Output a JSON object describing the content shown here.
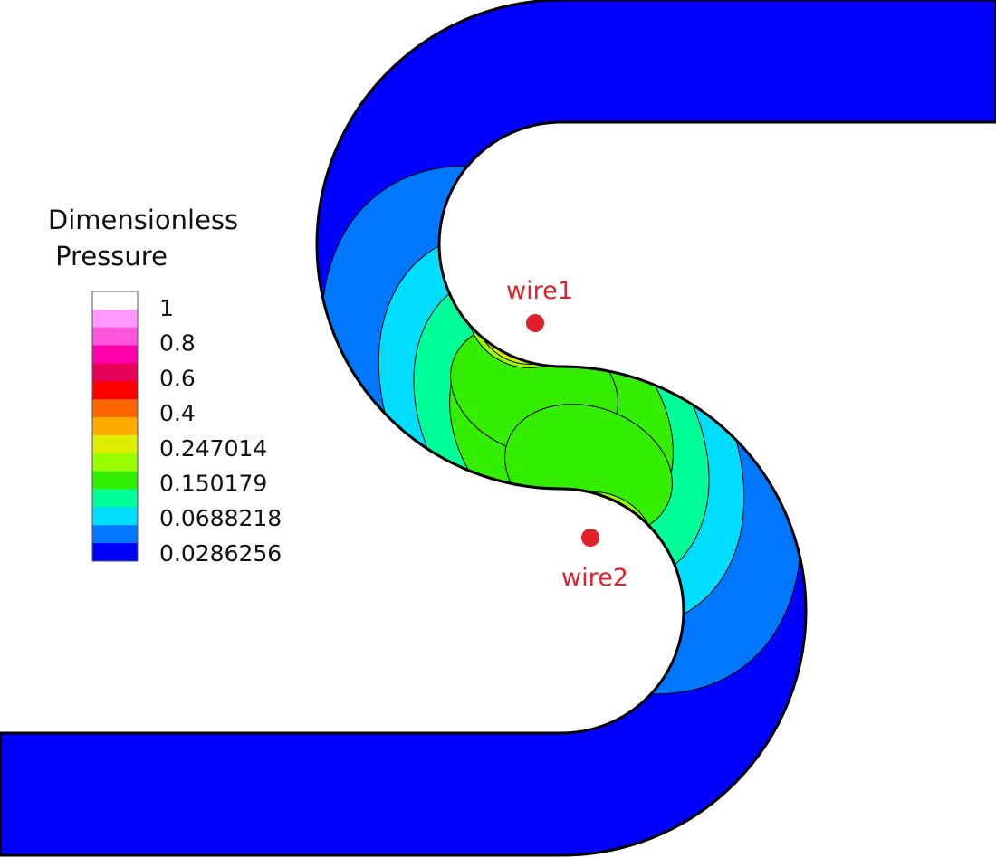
{
  "legend": {
    "title": [
      "Dimensionless",
      "Pressure"
    ],
    "labels": [
      "1",
      "0.8",
      "0.6",
      "0.4",
      "0.247014",
      "0.150179",
      "0.0688218",
      "0.0286256"
    ],
    "colors": [
      "#ffffff",
      "#ff99ff",
      "#ff55dd",
      "#ff00aa",
      "#e6005a",
      "#ff0000",
      "#ff6600",
      "#ffaa00",
      "#ddee00",
      "#99ff00",
      "#33ee00",
      "#00ff99",
      "#00ddff",
      "#0077ff",
      "#0000ff"
    ]
  },
  "wires": [
    {
      "label": "wire1"
    },
    {
      "label": "wire2"
    }
  ]
}
